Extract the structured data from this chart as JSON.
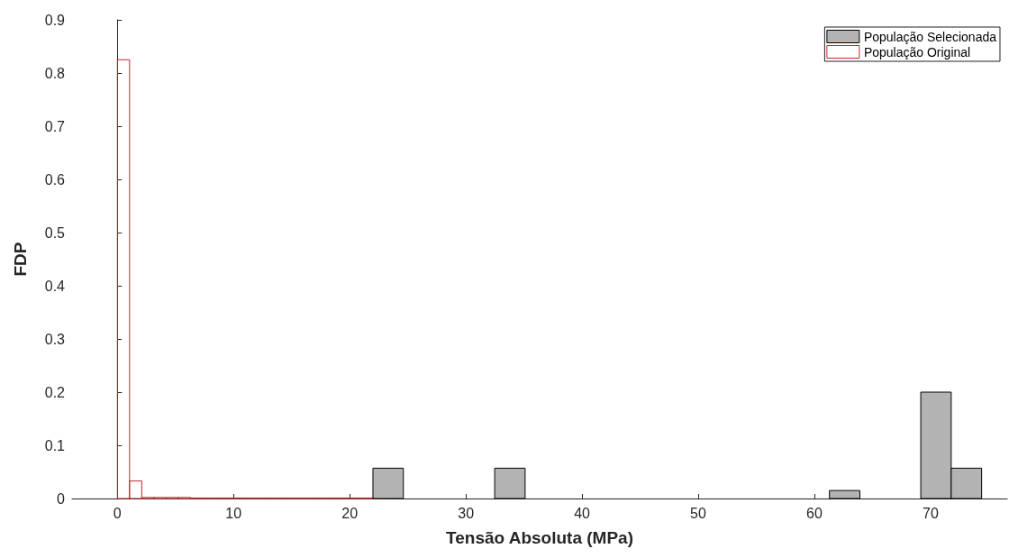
{
  "chart_data": {
    "type": "histogram",
    "xlabel": "Tensão Absoluta (MPa)",
    "ylabel": "FDP",
    "xlim": [
      -3.9,
      76.6
    ],
    "xticks": [
      0,
      10,
      20,
      30,
      40,
      50,
      60,
      70
    ],
    "ylim": [
      0,
      0.9
    ],
    "yticks": [
      0,
      0.1,
      0.2,
      0.3,
      0.4,
      0.5,
      0.6,
      0.7,
      0.8,
      0.9
    ],
    "legend": "top right",
    "bins": [
      0,
      1.05,
      2.1,
      3.15,
      4.2,
      5.25,
      6.3,
      7.35,
      8.4,
      9.45,
      10.5,
      11.55,
      12.6,
      13.65,
      14.7,
      15.75,
      16.8,
      17.85,
      18.9,
      19.95,
      21.0,
      22.05,
      23.1
    ],
    "series": [
      {
        "name": "População Selecionada",
        "color": "#b3b3b3",
        "bins": [
          22.0,
          24.62,
          27.24,
          29.86,
          32.48,
          35.1,
          37.72,
          40.34,
          42.96,
          45.58,
          48.2,
          50.82,
          53.44,
          56.06,
          58.68,
          61.3,
          63.92,
          66.54,
          69.16,
          71.78,
          74.4
        ],
        "values": [
          0.057,
          0,
          0,
          0,
          0.057,
          0,
          0,
          0,
          0,
          0,
          0,
          0,
          0,
          0,
          0,
          0.015,
          0,
          0,
          0.2,
          0.057
        ]
      },
      {
        "name": "População Original",
        "color": "#c0282d",
        "values": [
          0.825,
          0.033,
          0.002,
          0.002,
          0.002,
          0.002,
          0.001,
          0.001,
          0.001,
          0.001,
          0.001,
          0.001,
          0.001,
          0.001,
          0.001,
          0.001,
          0.001,
          0.001,
          0.001,
          0.001,
          0.001,
          0.001
        ]
      }
    ]
  }
}
